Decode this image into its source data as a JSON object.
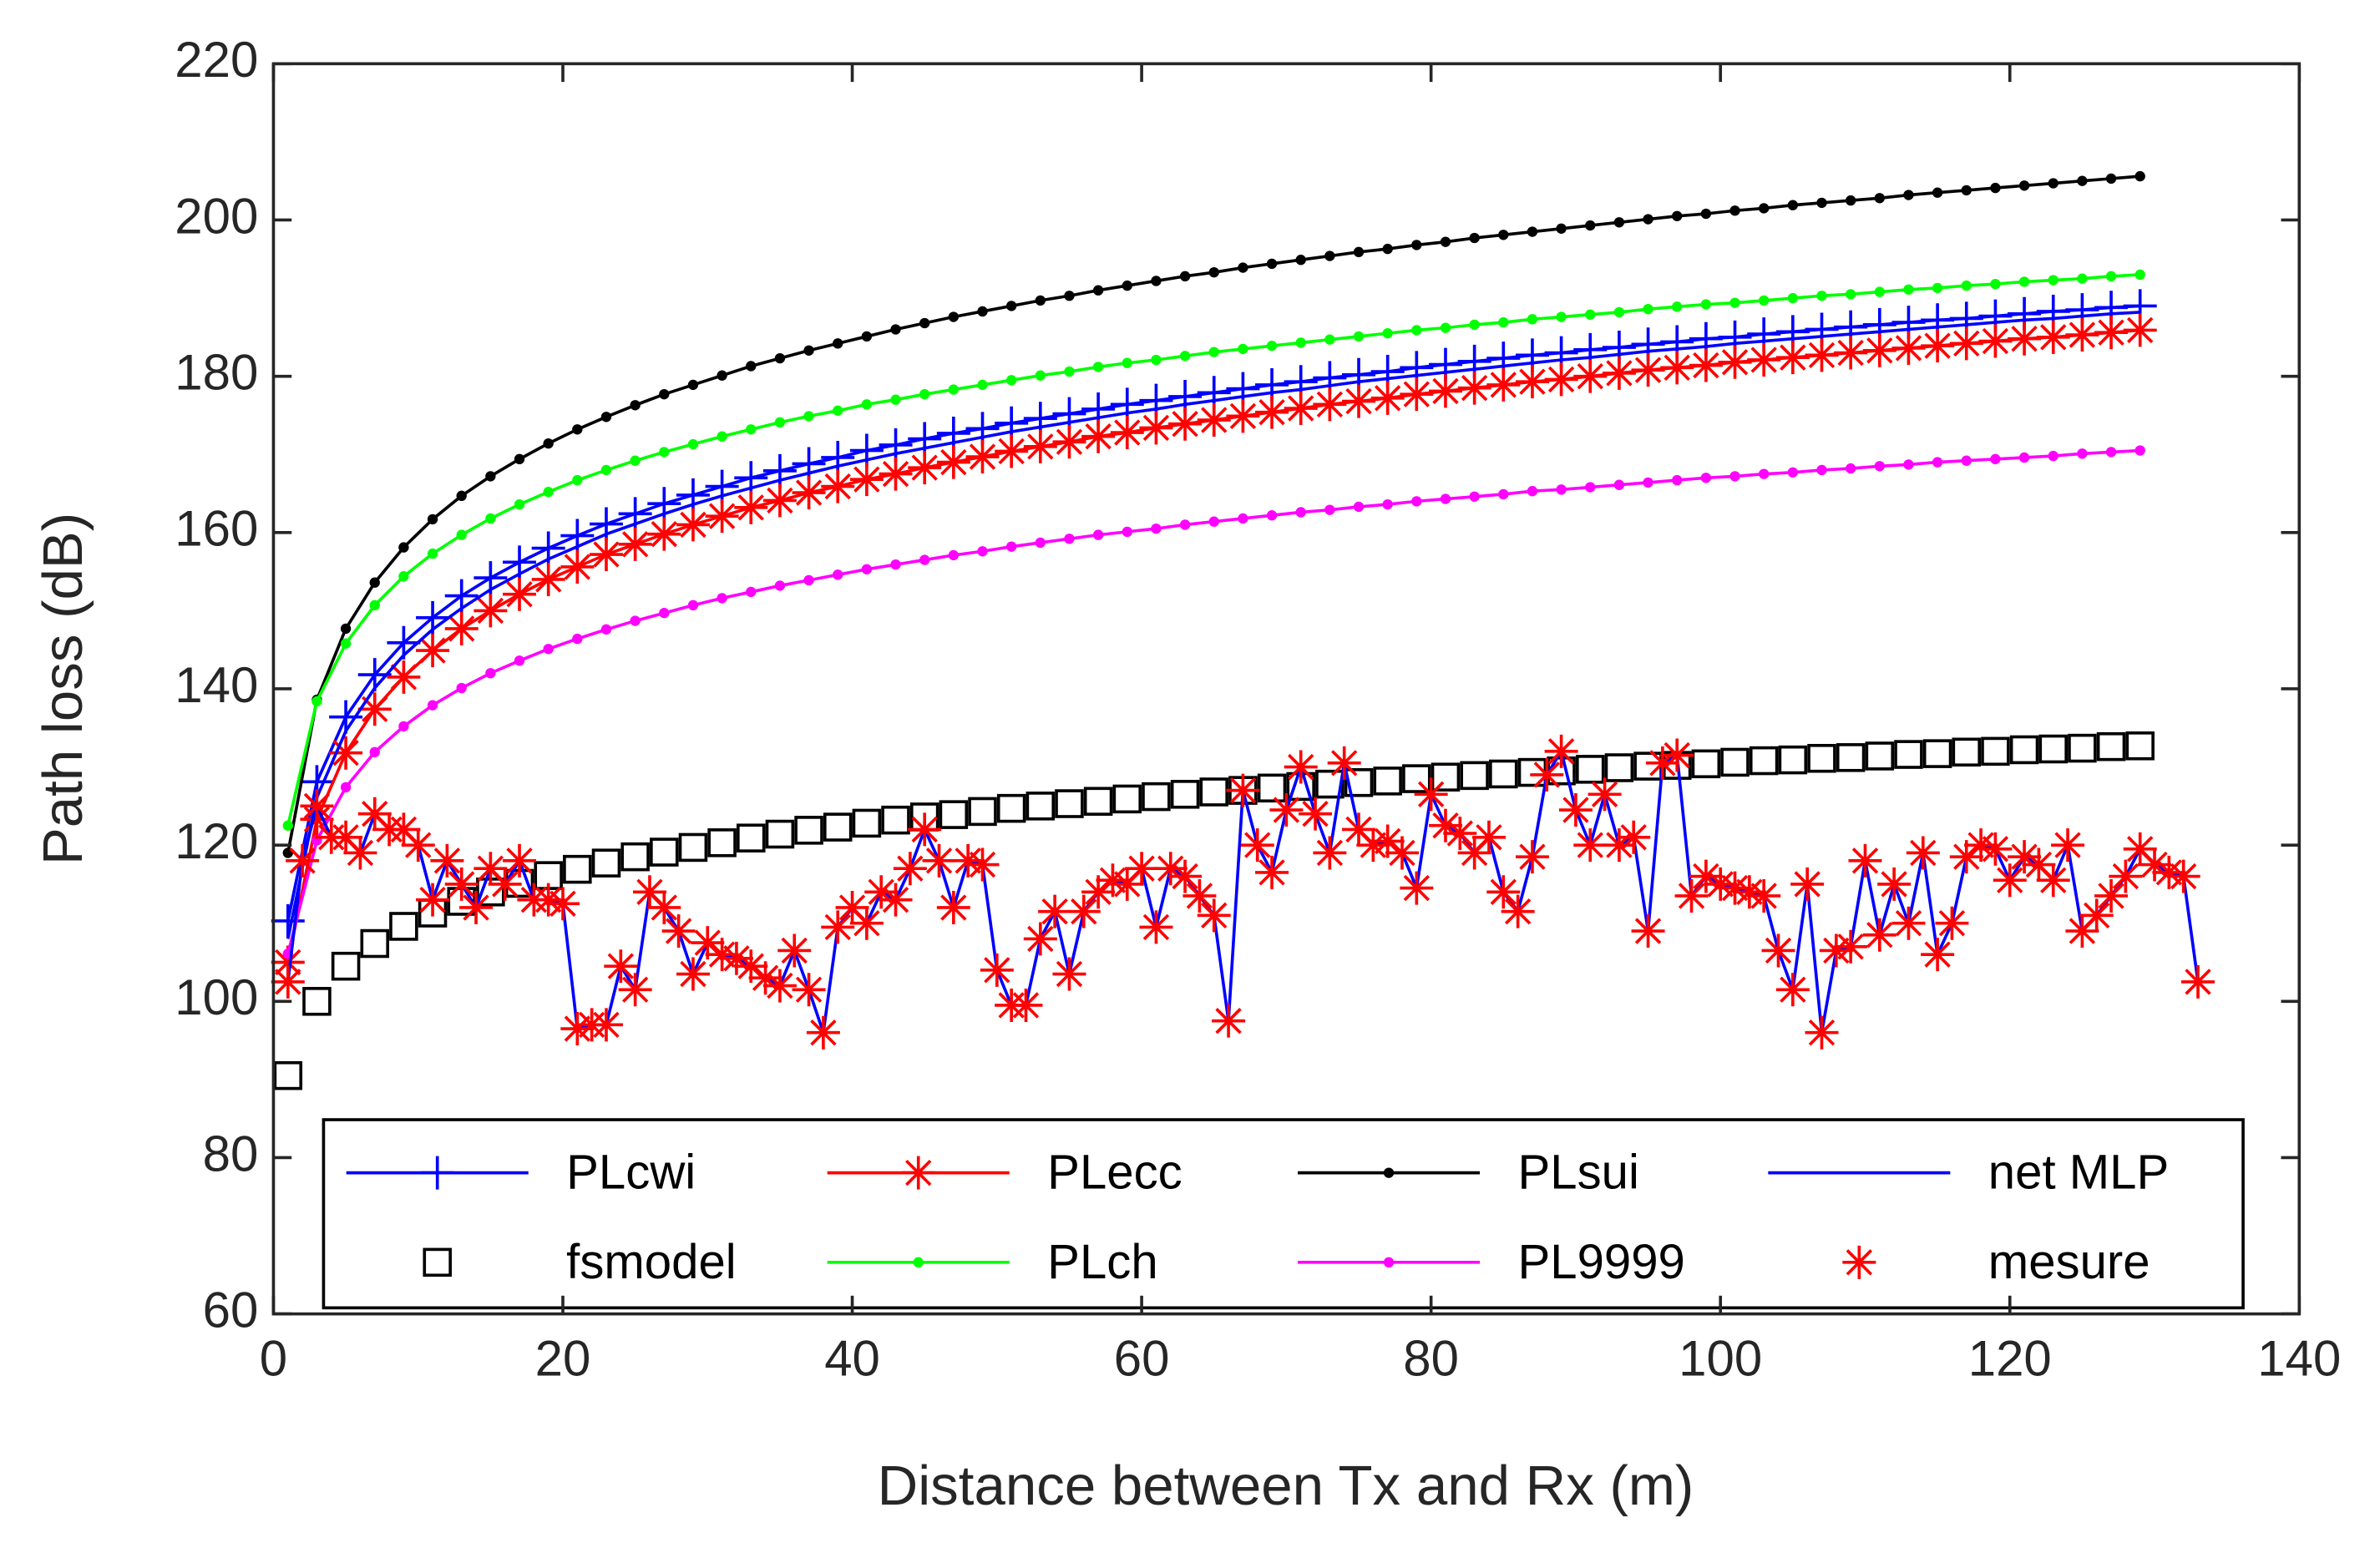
{
  "chart_data": {
    "type": "line",
    "xlabel": "Distance between Tx and Rx (m)",
    "ylabel": "Path loss (dB)",
    "xlim": [
      0,
      140
    ],
    "ylim": [
      60,
      220
    ],
    "xticks": [
      0,
      20,
      40,
      60,
      80,
      100,
      120,
      140
    ],
    "yticks": [
      60,
      80,
      100,
      120,
      140,
      160,
      180,
      200,
      220
    ],
    "legend": "bottom",
    "legend_columns": 4,
    "x": [
      1,
      3,
      5,
      7,
      9,
      11,
      13,
      15,
      17,
      19,
      21,
      23,
      25,
      27,
      29,
      31,
      33,
      35,
      37,
      39,
      41,
      43,
      45,
      47,
      49,
      51,
      53,
      55,
      57,
      59,
      61,
      63,
      65,
      67,
      69,
      71,
      73,
      75,
      77,
      79,
      81,
      83,
      85,
      87,
      89,
      91,
      93,
      95,
      97,
      99,
      101,
      103,
      105,
      107,
      109,
      111,
      113,
      115,
      117,
      119,
      121,
      123,
      125,
      127,
      129
    ],
    "series": [
      {
        "name": "PLcwi",
        "color": "#0000ff",
        "marker": "+",
        "line": true,
        "values": [
          110.3,
          128.1,
          136.4,
          141.8,
          145.9,
          149.1,
          151.9,
          154.2,
          156.2,
          158.0,
          159.6,
          161.1,
          162.4,
          163.7,
          164.8,
          165.9,
          167.0,
          167.9,
          168.8,
          169.6,
          170.5,
          171.2,
          172.0,
          172.7,
          173.3,
          174.0,
          174.6,
          175.2,
          175.8,
          176.4,
          176.9,
          177.4,
          177.9,
          178.4,
          178.9,
          179.3,
          179.8,
          180.2,
          180.6,
          181.1,
          181.5,
          181.9,
          182.3,
          182.7,
          183.0,
          183.4,
          183.7,
          184.1,
          184.4,
          184.8,
          185.0,
          185.4,
          185.7,
          186.0,
          186.3,
          186.6,
          186.9,
          187.2,
          187.4,
          187.7,
          188.0,
          188.3,
          188.5,
          188.8,
          189.0
        ]
      },
      {
        "name": "PLecc",
        "color": "#ff0000",
        "marker": "*",
        "line": true,
        "values": [
          105.0,
          123.3,
          131.8,
          137.4,
          141.5,
          144.9,
          147.7,
          150.0,
          152.1,
          154.0,
          155.6,
          157.2,
          158.5,
          159.8,
          161.0,
          162.1,
          163.2,
          164.1,
          165.1,
          165.9,
          166.8,
          167.5,
          168.3,
          169.0,
          169.7,
          170.4,
          171.0,
          171.6,
          172.3,
          172.8,
          173.4,
          173.9,
          174.4,
          174.9,
          175.4,
          175.9,
          176.4,
          176.8,
          177.2,
          177.7,
          178.1,
          178.5,
          178.9,
          179.3,
          179.6,
          180.0,
          180.4,
          180.8,
          181.1,
          181.4,
          181.8,
          182.1,
          182.4,
          182.7,
          183.0,
          183.3,
          183.6,
          183.9,
          184.2,
          184.5,
          184.8,
          185.0,
          185.3,
          185.6,
          185.9
        ]
      },
      {
        "name": "PLsui",
        "color": "#000000",
        "marker": ".",
        "line": true,
        "values": [
          119.0,
          138.6,
          147.7,
          153.6,
          158.1,
          161.7,
          164.7,
          167.2,
          169.4,
          171.4,
          173.2,
          174.8,
          176.3,
          177.7,
          178.9,
          180.1,
          181.3,
          182.3,
          183.3,
          184.2,
          185.1,
          186.0,
          186.8,
          187.6,
          188.3,
          189.0,
          189.7,
          190.3,
          191.0,
          191.6,
          192.2,
          192.8,
          193.3,
          193.9,
          194.4,
          194.9,
          195.4,
          195.9,
          196.3,
          196.8,
          197.2,
          197.7,
          198.1,
          198.5,
          198.9,
          199.3,
          199.7,
          200.1,
          200.5,
          200.8,
          201.2,
          201.5,
          201.9,
          202.2,
          202.5,
          202.8,
          203.2,
          203.5,
          203.8,
          204.1,
          204.4,
          204.7,
          205.0,
          205.3,
          205.6
        ]
      },
      {
        "name": "net MLP",
        "color": "#0000ff",
        "marker": "none",
        "line": true,
        "values": [
          108.0,
          126.1,
          134.6,
          140.1,
          144.3,
          147.6,
          150.3,
          152.7,
          154.7,
          156.6,
          158.2,
          159.8,
          161.1,
          162.4,
          163.6,
          164.7,
          165.7,
          166.7,
          167.6,
          168.5,
          169.3,
          170.1,
          170.8,
          171.5,
          172.2,
          172.9,
          173.5,
          174.1,
          174.7,
          175.3,
          175.8,
          176.4,
          176.9,
          177.4,
          177.9,
          178.3,
          178.8,
          179.3,
          179.7,
          180.1,
          180.5,
          180.9,
          181.3,
          181.7,
          182.1,
          182.4,
          182.8,
          183.2,
          183.5,
          183.8,
          184.2,
          184.5,
          184.8,
          185.1,
          185.4,
          185.7,
          186.0,
          186.3,
          186.6,
          186.9,
          187.2,
          187.4,
          187.7,
          188.0,
          188.2
        ]
      },
      {
        "name": "fsmodel",
        "color": "#000000",
        "marker": "square",
        "line": false,
        "values": [
          90.5,
          100.0,
          104.5,
          107.4,
          109.6,
          111.3,
          112.8,
          114.0,
          115.1,
          116.1,
          116.9,
          117.7,
          118.5,
          119.1,
          119.7,
          120.3,
          120.9,
          121.4,
          121.9,
          122.3,
          122.8,
          123.2,
          123.6,
          123.9,
          124.3,
          124.7,
          125.0,
          125.3,
          125.6,
          125.9,
          126.2,
          126.5,
          126.8,
          127.0,
          127.3,
          127.5,
          127.8,
          128.0,
          128.2,
          128.5,
          128.7,
          128.9,
          129.1,
          129.3,
          129.5,
          129.7,
          129.9,
          130.1,
          130.2,
          130.4,
          130.6,
          130.8,
          130.9,
          131.1,
          131.2,
          131.4,
          131.6,
          131.7,
          131.9,
          132.0,
          132.2,
          132.3,
          132.4,
          132.6,
          132.7
        ]
      },
      {
        "name": "PLch",
        "color": "#00ff00",
        "marker": ".",
        "line": true,
        "values": [
          122.5,
          138.4,
          145.8,
          150.7,
          154.4,
          157.3,
          159.7,
          161.8,
          163.6,
          165.2,
          166.7,
          168.0,
          169.2,
          170.3,
          171.3,
          172.3,
          173.2,
          174.1,
          174.9,
          175.6,
          176.4,
          177.0,
          177.7,
          178.3,
          178.9,
          179.5,
          180.1,
          180.6,
          181.2,
          181.7,
          182.1,
          182.6,
          183.1,
          183.5,
          183.9,
          184.3,
          184.7,
          185.1,
          185.5,
          185.9,
          186.2,
          186.6,
          186.9,
          187.3,
          187.6,
          187.9,
          188.2,
          188.6,
          188.9,
          189.2,
          189.4,
          189.7,
          190.0,
          190.3,
          190.5,
          190.8,
          191.1,
          191.3,
          191.6,
          191.8,
          192.1,
          192.3,
          192.5,
          192.8,
          193.0
        ]
      },
      {
        "name": "PL9999",
        "color": "#ff00ff",
        "marker": ".",
        "line": true,
        "values": [
          106.1,
          120.6,
          127.4,
          131.9,
          135.2,
          137.9,
          140.1,
          142.0,
          143.6,
          145.1,
          146.4,
          147.6,
          148.7,
          149.7,
          150.7,
          151.6,
          152.4,
          153.2,
          153.9,
          154.6,
          155.3,
          155.9,
          156.5,
          157.1,
          157.6,
          158.2,
          158.7,
          159.2,
          159.7,
          160.1,
          160.5,
          161.0,
          161.4,
          161.8,
          162.2,
          162.6,
          162.9,
          163.3,
          163.6,
          164.0,
          164.3,
          164.6,
          164.9,
          165.3,
          165.5,
          165.8,
          166.1,
          166.4,
          166.7,
          167.0,
          167.2,
          167.5,
          167.7,
          168.0,
          168.2,
          168.5,
          168.7,
          169.0,
          169.2,
          169.4,
          169.6,
          169.8,
          170.1,
          170.3,
          170.5
        ]
      },
      {
        "name": "mesure",
        "color": "#ff0000",
        "marker": "*",
        "line": true,
        "line_color": "#0000ff",
        "legend_line": false,
        "x": [
          1,
          2,
          3,
          4,
          5,
          6,
          7,
          8,
          9,
          10,
          11,
          12,
          13,
          14,
          15,
          16,
          17,
          18,
          19,
          20,
          21,
          22,
          23,
          24,
          25,
          26,
          27,
          28,
          29,
          30,
          31,
          32,
          33,
          34,
          35,
          36,
          37,
          38,
          39,
          40,
          41,
          42,
          43,
          44,
          45,
          46,
          47,
          48,
          49,
          50,
          51,
          52,
          53,
          54,
          55,
          56,
          57,
          58,
          59,
          60,
          61,
          62,
          63,
          64,
          65,
          66,
          67,
          68,
          69,
          70,
          71,
          72,
          73,
          74,
          75,
          76,
          77,
          78,
          79,
          80,
          81,
          82,
          83,
          84,
          85,
          86,
          87,
          88,
          89,
          90,
          91,
          92,
          93,
          94,
          95,
          96,
          97,
          98,
          99,
          100,
          101,
          102,
          103,
          104,
          105,
          106,
          107,
          108,
          109,
          110,
          111,
          112,
          113,
          114,
          115,
          116,
          117,
          118,
          119,
          120,
          121,
          122,
          123,
          124,
          125,
          126,
          127,
          128,
          129,
          130,
          131,
          132,
          133
        ],
        "values": [
          102.5,
          118,
          125,
          121,
          121,
          119,
          124,
          122,
          122,
          120,
          113,
          118,
          115,
          112,
          117,
          115,
          118,
          113,
          113,
          112.5,
          96.5,
          97,
          97,
          104.5,
          101.5,
          114,
          112,
          109,
          103.5,
          107.5,
          106,
          105.5,
          104.5,
          103,
          102,
          106.5,
          101.5,
          96,
          109.5,
          112,
          110,
          114,
          113,
          117,
          122,
          118,
          112,
          118,
          117.5,
          104,
          99.5,
          99.5,
          108,
          111.5,
          103.5,
          111.5,
          114,
          115.5,
          115,
          117,
          109.5,
          117,
          116,
          113.5,
          111,
          97.5,
          127,
          120,
          116.5,
          124.5,
          130,
          124,
          119,
          130.5,
          122,
          120,
          120.5,
          119,
          114.5,
          126.5,
          122.5,
          121.5,
          119,
          121,
          114,
          111.5,
          118.5,
          129,
          132,
          124.5,
          120,
          126.5,
          120,
          121,
          109,
          130.5,
          131.5,
          113.5,
          116,
          115,
          114.5,
          114,
          113.5,
          106.5,
          101.5,
          115,
          96,
          106.5,
          107,
          118,
          108.5,
          115,
          110,
          119,
          106,
          110,
          118.5,
          120,
          119.5,
          115.5,
          118.5,
          117.5,
          115.5,
          120,
          109,
          111,
          113.5,
          116,
          119.5,
          117.5,
          116.5,
          116,
          102.5
        ]
      }
    ]
  }
}
